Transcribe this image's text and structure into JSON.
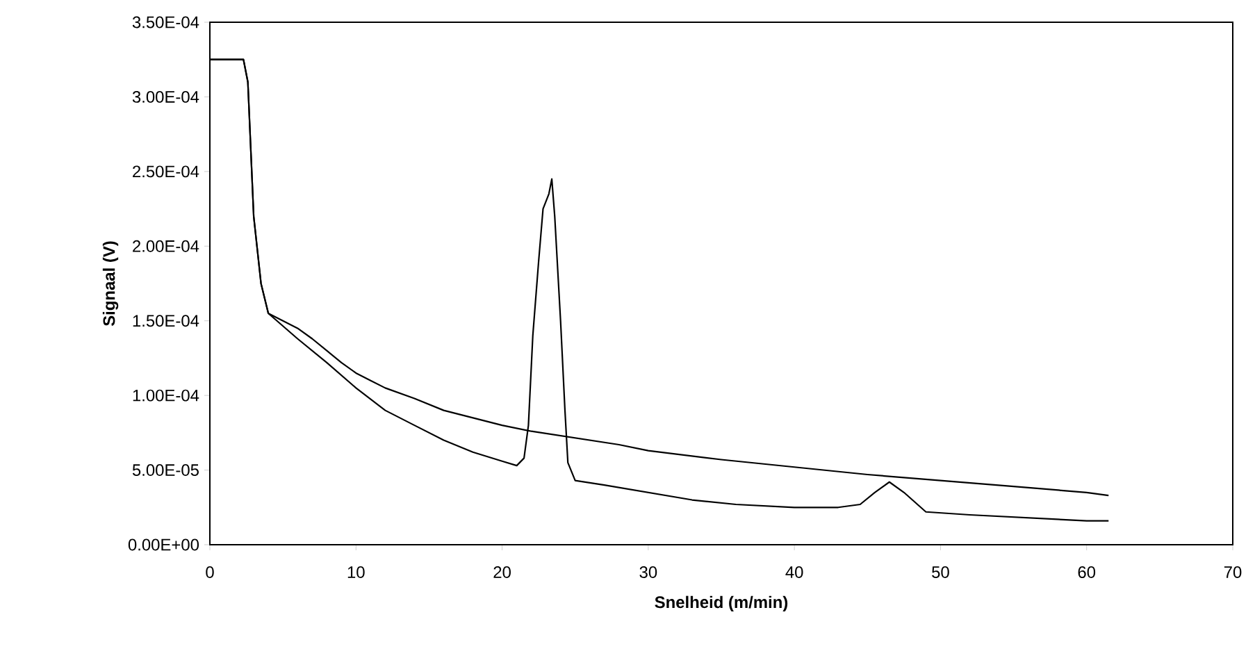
{
  "chart_data": {
    "type": "line",
    "xlabel": "Snelheid (m/min)",
    "ylabel": "Signaal (V)",
    "xlim": [
      0,
      70
    ],
    "ylim": [
      0,
      0.00035
    ],
    "xticks": [
      0,
      10,
      20,
      30,
      40,
      50,
      60,
      70
    ],
    "yticks": [
      {
        "value": 0,
        "label": "0.00E+00"
      },
      {
        "value": 5e-05,
        "label": "5.00E-05"
      },
      {
        "value": 0.0001,
        "label": "1.00E-04"
      },
      {
        "value": 0.00015,
        "label": "1.50E-04"
      },
      {
        "value": 0.0002,
        "label": "2.00E-04"
      },
      {
        "value": 0.00025,
        "label": "2.50E-04"
      },
      {
        "value": 0.0003,
        "label": "3.00E-04"
      },
      {
        "value": 0.00035,
        "label": "3.50E-04"
      }
    ],
    "grid": false,
    "marker": "none",
    "line_style": "solid",
    "series": [
      {
        "color": "#000000",
        "x": [
          0,
          2.3,
          2.6,
          3.0,
          3.5,
          4,
          5,
          6,
          7,
          8,
          9,
          10,
          11,
          12,
          14,
          16,
          18,
          20,
          22,
          24,
          26,
          28,
          30,
          35,
          40,
          45,
          50,
          55,
          60,
          61.5
        ],
        "values": [
          0.000325,
          0.000325,
          0.00031,
          0.00022,
          0.000175,
          0.000155,
          0.00015,
          0.000145,
          0.000138,
          0.00013,
          0.000122,
          0.000115,
          0.00011,
          0.000105,
          9.8e-05,
          9e-05,
          8.5e-05,
          8e-05,
          7.6e-05,
          7.3e-05,
          7e-05,
          6.7e-05,
          6.3e-05,
          5.7e-05,
          5.2e-05,
          4.7e-05,
          4.3e-05,
          3.9e-05,
          3.5e-05,
          3.3e-05
        ]
      },
      {
        "color": "#000000",
        "x": [
          0,
          2.3,
          2.6,
          3.0,
          3.5,
          4,
          6,
          8,
          10,
          12,
          14,
          16,
          18,
          20,
          21,
          21.5,
          21.8,
          22.1,
          22.5,
          22.8,
          23.2,
          23.4,
          23.6,
          24,
          24.3,
          24.5,
          25,
          27,
          30,
          33,
          36,
          40,
          43,
          44.5,
          45.5,
          46.5,
          47.5,
          49,
          52,
          56,
          60,
          61.5
        ],
        "values": [
          0.000325,
          0.000325,
          0.00031,
          0.00022,
          0.000175,
          0.000155,
          0.000138,
          0.000122,
          0.000105,
          9e-05,
          8e-05,
          7e-05,
          6.2e-05,
          5.6e-05,
          5.3e-05,
          5.8e-05,
          8e-05,
          0.00014,
          0.00019,
          0.000225,
          0.000235,
          0.000245,
          0.00022,
          0.00015,
          9e-05,
          5.5e-05,
          4.3e-05,
          4e-05,
          3.5e-05,
          3e-05,
          2.7e-05,
          2.5e-05,
          2.5e-05,
          2.7e-05,
          3.5e-05,
          4.2e-05,
          3.5e-05,
          2.2e-05,
          2e-05,
          1.8e-05,
          1.6e-05,
          1.6e-05
        ]
      }
    ]
  }
}
